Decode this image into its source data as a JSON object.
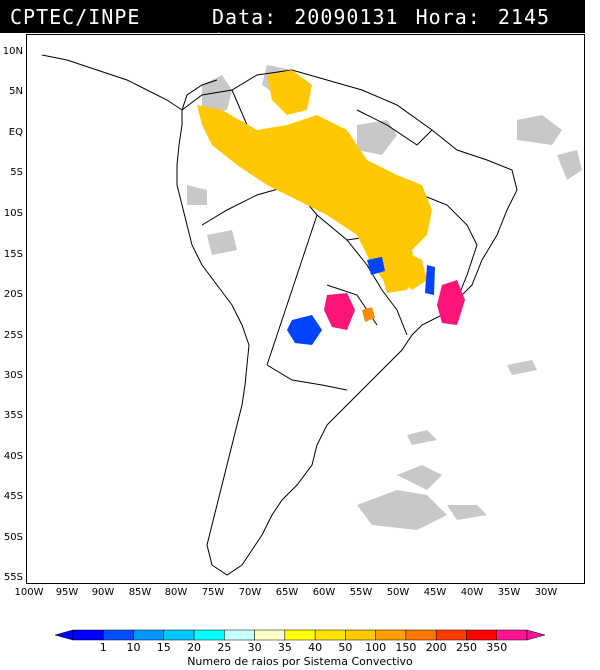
{
  "header": {
    "source": "CPTEC/INPE",
    "datetime": "Data: 20090131 Hora: 2145 GMT"
  },
  "axes": {
    "latitude_labels": [
      "10N",
      "5N",
      "EQ",
      "5S",
      "10S",
      "15S",
      "20S",
      "25S",
      "30S",
      "35S",
      "40S",
      "45S",
      "50S",
      "55S"
    ],
    "longitude_labels": [
      "100W",
      "95W",
      "90W",
      "85W",
      "80W",
      "75W",
      "70W",
      "65W",
      "60W",
      "55W",
      "50W",
      "45W",
      "40W",
      "35W",
      "30W"
    ]
  },
  "legend": {
    "values": [
      "1",
      "10",
      "15",
      "20",
      "25",
      "30",
      "35",
      "40",
      "50",
      "100",
      "150",
      "200",
      "250",
      "350"
    ],
    "colors": [
      "#0000ff",
      "#0050ff",
      "#0096ff",
      "#00c8ff",
      "#00ffff",
      "#c8ffff",
      "#ffffc8",
      "#ffff00",
      "#ffe100",
      "#ffc800",
      "#ffa000",
      "#ff7800",
      "#ff3c00",
      "#ff0000",
      "#ff1493"
    ],
    "label": "Numero de raios por Sistema Convectivo"
  },
  "map": {
    "cloud_color": "#c8c8c8",
    "lightning_colors": {
      "yellow": "#ffc800",
      "blue": "#0044ff",
      "magenta": "#ff1478",
      "orange": "#ff8c00"
    }
  }
}
